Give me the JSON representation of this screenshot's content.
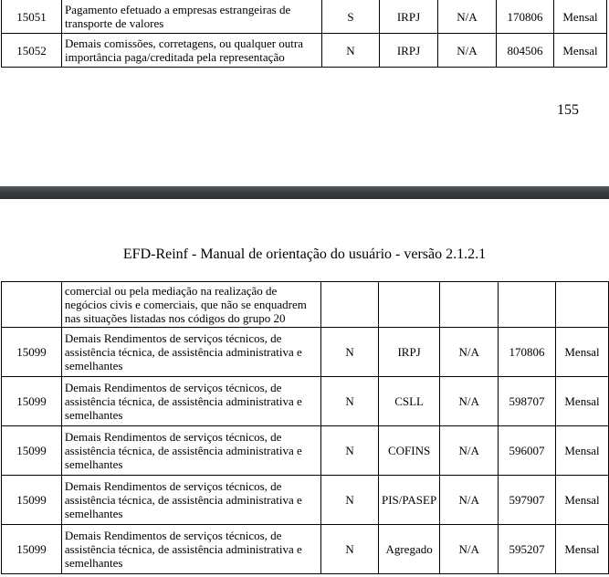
{
  "page_prev": {
    "rows": [
      {
        "code": "15051",
        "desc": "Pagamento efetuado a empresas estrangeiras de transporte de valores",
        "flag": "S",
        "tributo": "IRPJ",
        "na": "N/A",
        "codigo_receita": "170806",
        "periodicidade": "Mensal"
      },
      {
        "code": "15052",
        "desc": "Demais comissões, corretagens, ou qualquer outra importância paga/creditada pela representação",
        "flag": "N",
        "tributo": "IRPJ",
        "na": "N/A",
        "codigo_receita": "804506",
        "periodicidade": "Mensal"
      }
    ],
    "page_number": "155"
  },
  "page_next": {
    "header": "EFD-Reinf - Manual de orientação do usuário - versão 2.1.2.1",
    "continuation": "comercial ou pela mediação na realização de negócios civis e comerciais, que não se enquadrem nas situações listadas nos códigos do grupo 20",
    "rows": [
      {
        "code": "15099",
        "desc": "Demais Rendimentos de serviços técnicos, de assistência técnica, de assistência administrativa e semelhantes",
        "flag": "N",
        "tributo": "IRPJ",
        "na": "N/A",
        "codigo_receita": "170806",
        "periodicidade": "Mensal"
      },
      {
        "code": "15099",
        "desc": "Demais Rendimentos de serviços técnicos, de assistência técnica, de assistência administrativa e semelhantes",
        "flag": "N",
        "tributo": "CSLL",
        "na": "N/A",
        "codigo_receita": "598707",
        "periodicidade": "Mensal"
      },
      {
        "code": "15099",
        "desc": "Demais Rendimentos de serviços técnicos, de assistência técnica, de assistência administrativa e semelhantes",
        "flag": "N",
        "tributo": "COFINS",
        "na": "N/A",
        "codigo_receita": "596007",
        "periodicidade": "Mensal"
      },
      {
        "code": "15099",
        "desc": "Demais Rendimentos de serviços técnicos, de assistência técnica, de assistência administrativa e semelhantes",
        "flag": "N",
        "tributo": "PIS/PASEP",
        "na": "N/A",
        "codigo_receita": "597907",
        "periodicidade": "Mensal"
      },
      {
        "code": "15099",
        "desc": "Demais Rendimentos de serviços técnicos, de assistência técnica, de assistência administrativa e semelhantes",
        "flag": "N",
        "tributo": "Agregado",
        "na": "N/A",
        "codigo_receita": "595207",
        "periodicidade": "Mensal"
      }
    ]
  }
}
